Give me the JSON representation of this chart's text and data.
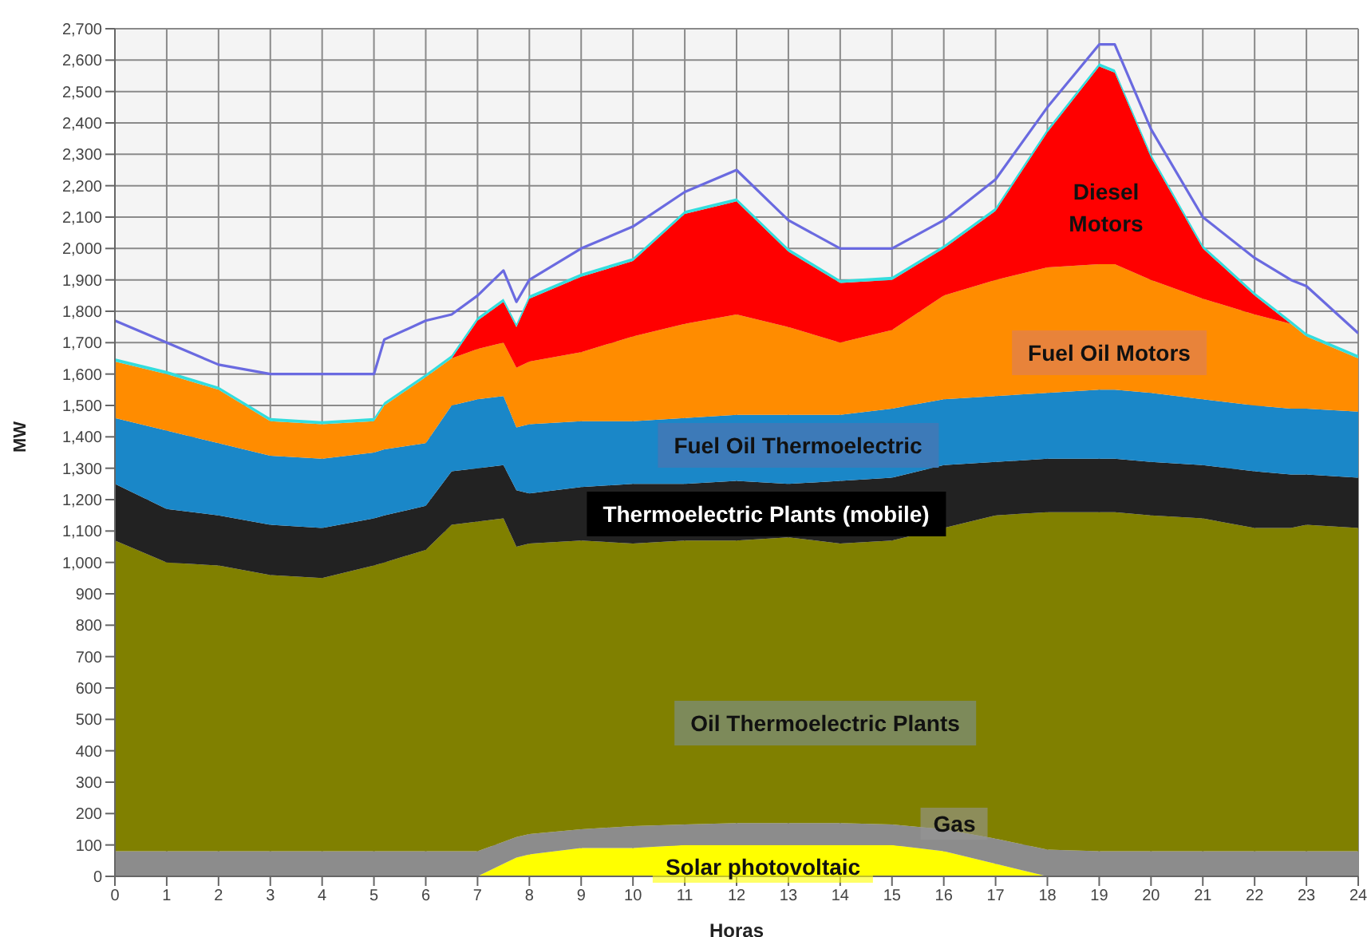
{
  "chart_data": {
    "type": "area",
    "stacked": true,
    "xlabel": "Horas",
    "ylabel": "MW",
    "grid": true,
    "xlim": [
      0,
      24
    ],
    "xticks": [
      0,
      1,
      2,
      3,
      4,
      5,
      6,
      7,
      8,
      9,
      10,
      11,
      12,
      13,
      14,
      15,
      16,
      17,
      18,
      19,
      20,
      21,
      22,
      23,
      24
    ],
    "ylim": [
      0,
      2700
    ],
    "yticks": [
      0,
      100,
      200,
      300,
      400,
      500,
      600,
      700,
      800,
      900,
      {
        "value": 1000,
        "label": "1,000"
      },
      {
        "value": 1100,
        "label": "1,100"
      },
      {
        "value": 1200,
        "label": "1,200"
      },
      {
        "value": 1300,
        "label": "1,300"
      },
      {
        "value": 1400,
        "label": "1,400"
      },
      {
        "value": 1500,
        "label": "1,500"
      },
      {
        "value": 1600,
        "label": "1,600"
      },
      {
        "value": 1700,
        "label": "1,700"
      },
      {
        "value": 1800,
        "label": "1,800"
      },
      {
        "value": 1900,
        "label": "1,900"
      },
      {
        "value": 2000,
        "label": "2,000"
      },
      {
        "value": 2100,
        "label": "2,100"
      },
      {
        "value": 2200,
        "label": "2,200"
      },
      {
        "value": 2300,
        "label": "2,300"
      },
      {
        "value": 2400,
        "label": "2,400"
      },
      {
        "value": 2500,
        "label": "2,500"
      },
      {
        "value": 2600,
        "label": "2,600"
      },
      {
        "value": 2700,
        "label": "2,700"
      }
    ],
    "x": [
      0,
      1,
      2,
      3,
      4,
      5,
      5.2,
      6,
      6.5,
      7,
      7.5,
      7.75,
      8,
      9,
      10,
      11,
      12,
      13,
      14,
      15,
      16,
      17,
      18,
      19,
      19.3,
      20,
      21,
      22,
      22.7,
      23,
      24
    ],
    "series": [
      {
        "name": "Solar photovoltaic",
        "color": "#ffff00",
        "values": [
          0,
          0,
          0,
          0,
          0,
          0,
          0,
          0,
          0,
          0,
          40,
          60,
          70,
          90,
          90,
          100,
          100,
          100,
          100,
          100,
          80,
          40,
          0,
          0,
          0,
          0,
          0,
          0,
          0,
          0,
          0
        ]
      },
      {
        "name": "Gas",
        "color": "#8c8c8c",
        "values": [
          80,
          80,
          80,
          80,
          80,
          80,
          80,
          80,
          80,
          80,
          70,
          65,
          65,
          60,
          70,
          65,
          70,
          70,
          70,
          65,
          70,
          80,
          85,
          80,
          80,
          80,
          80,
          80,
          80,
          80,
          80
        ]
      },
      {
        "name": "Oil Thermoelectric Plants",
        "color": "#808000",
        "values": [
          990,
          920,
          910,
          880,
          870,
          910,
          920,
          960,
          1040,
          1050,
          1030,
          925,
          925,
          920,
          900,
          905,
          900,
          910,
          890,
          905,
          960,
          1030,
          1075,
          1080,
          1080,
          1070,
          1060,
          1030,
          1030,
          1040,
          1030
        ]
      },
      {
        "name": "Thermoelectric Plants (mobile)",
        "color": "#222222",
        "values": [
          180,
          170,
          160,
          160,
          160,
          150,
          150,
          140,
          170,
          170,
          170,
          180,
          160,
          170,
          190,
          180,
          190,
          170,
          200,
          200,
          200,
          170,
          170,
          170,
          170,
          170,
          170,
          180,
          170,
          160,
          160
        ]
      },
      {
        "name": "Fuel Oil Thermoelectric",
        "color": "#1a87c8",
        "values": [
          210,
          250,
          230,
          220,
          220,
          210,
          210,
          200,
          210,
          220,
          220,
          200,
          220,
          210,
          200,
          210,
          210,
          220,
          210,
          220,
          210,
          210,
          210,
          220,
          220,
          220,
          210,
          210,
          210,
          210,
          210
        ]
      },
      {
        "name": "Fuel Oil Motors",
        "color": "#ff8c00",
        "values": [
          180,
          180,
          170,
          110,
          110,
          100,
          140,
          210,
          150,
          160,
          170,
          190,
          200,
          220,
          270,
          300,
          320,
          280,
          230,
          250,
          330,
          370,
          400,
          400,
          400,
          360,
          320,
          290,
          270,
          230,
          170
        ]
      },
      {
        "name": "Diesel Motors",
        "color": "#ff0000",
        "values": [
          0,
          0,
          0,
          0,
          0,
          0,
          0,
          0,
          0,
          90,
          130,
          130,
          200,
          240,
          240,
          350,
          360,
          240,
          190,
          160,
          150,
          220,
          430,
          630,
          610,
          390,
          160,
          60,
          0,
          0,
          0
        ]
      },
      {
        "color": "#33dddd",
        "values": [
          10,
          10,
          10,
          10,
          10,
          10,
          10,
          10,
          10,
          10,
          10,
          10,
          10,
          10,
          10,
          10,
          10,
          10,
          10,
          10,
          10,
          10,
          10,
          10,
          10,
          10,
          10,
          10,
          10,
          10,
          10
        ]
      },
      {
        "type": "line",
        "color": "#6a6ae0",
        "values": [
          1770,
          1700,
          1630,
          1600,
          1600,
          1600,
          1710,
          1770,
          1790,
          1850,
          1930,
          1830,
          1900,
          2000,
          2070,
          2180,
          2250,
          2090,
          2000,
          2000,
          2090,
          2220,
          2450,
          2650,
          2650,
          2380,
          2100,
          1970,
          1900,
          1880,
          1730
        ]
      }
    ]
  }
}
